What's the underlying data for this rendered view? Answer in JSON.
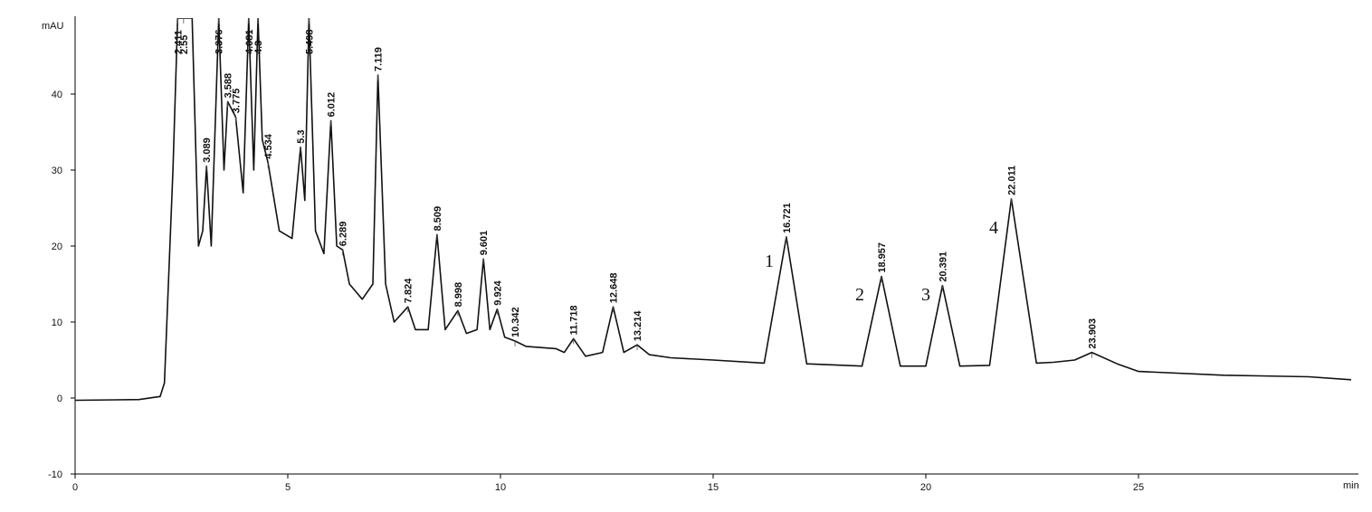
{
  "chart_data": {
    "type": "line",
    "y_label": "mAU",
    "x_label": "min",
    "xlim": [
      0,
      30
    ],
    "ylim": [
      -10,
      50
    ],
    "xticks": [
      0,
      5,
      10,
      15,
      20,
      25
    ],
    "yticks": [
      -10,
      0,
      10,
      20,
      30,
      40
    ],
    "color": "#111111",
    "series": [
      {
        "color": "#111111",
        "x": [
          0,
          1.5,
          2.0,
          2.1,
          2.3,
          2.41,
          2.55,
          2.75,
          2.9,
          3.0,
          3.089,
          3.2,
          3.376,
          3.5,
          3.588,
          3.775,
          3.95,
          4.081,
          4.2,
          4.3,
          4.4,
          4.534,
          4.8,
          5.1,
          5.3,
          5.4,
          5.498,
          5.65,
          5.85,
          6.012,
          6.15,
          6.289,
          6.45,
          6.6,
          6.75,
          7.0,
          7.119,
          7.3,
          7.5,
          7.824,
          8.0,
          8.3,
          8.509,
          8.7,
          8.998,
          9.2,
          9.45,
          9.601,
          9.75,
          9.924,
          10.1,
          10.342,
          10.6,
          11.3,
          11.5,
          11.718,
          12.0,
          12.4,
          12.648,
          12.9,
          13.214,
          13.5,
          14,
          15,
          16.2,
          16.721,
          17.2,
          18.5,
          18.957,
          19.4,
          20.0,
          20.391,
          20.8,
          21.5,
          22.011,
          22.6,
          23.0,
          23.5,
          23.903,
          24.5,
          25,
          27,
          29,
          30
        ],
        "values": [
          -0.3,
          -0.2,
          0.2,
          2,
          30,
          50,
          50,
          50,
          20,
          22,
          30.5,
          20,
          50,
          30,
          39,
          37,
          27,
          50,
          30,
          50,
          34,
          31,
          22,
          21,
          33,
          26,
          50,
          22,
          19,
          36.5,
          20,
          19.5,
          15,
          14,
          13,
          15,
          42.5,
          15,
          10,
          12,
          9,
          9,
          21.5,
          9,
          11.5,
          8.5,
          9,
          18.3,
          9,
          11.7,
          8,
          7.5,
          6.8,
          6.5,
          6,
          7.8,
          5.5,
          6,
          12,
          6,
          7,
          5.7,
          5.3,
          5,
          4.6,
          21.2,
          4.5,
          4.2,
          16,
          4.2,
          4.2,
          14.8,
          4.2,
          4.3,
          26.2,
          4.6,
          4.7,
          5,
          6,
          4.5,
          3.5,
          3,
          2.8,
          2.4
        ]
      }
    ],
    "peak_times": [
      2.411,
      2.55,
      3.089,
      3.376,
      3.588,
      3.775,
      4.081,
      4.3,
      4.534,
      5.3,
      5.498,
      6.012,
      6.289,
      7.119,
      7.824,
      8.509,
      8.998,
      9.601,
      9.924,
      10.342,
      11.718,
      12.648,
      13.214,
      16.721,
      18.957,
      20.391,
      22.011,
      23.903
    ],
    "peak_heights": [
      50,
      50,
      30.5,
      50,
      39,
      37,
      50,
      50,
      31,
      33,
      50,
      36.5,
      19.5,
      42.5,
      12,
      21.5,
      11.5,
      18.3,
      11.7,
      7.5,
      7.8,
      12,
      7,
      21.2,
      16,
      14.8,
      26.2,
      6
    ],
    "annotations": [
      "1",
      "2",
      "3",
      "4"
    ]
  }
}
